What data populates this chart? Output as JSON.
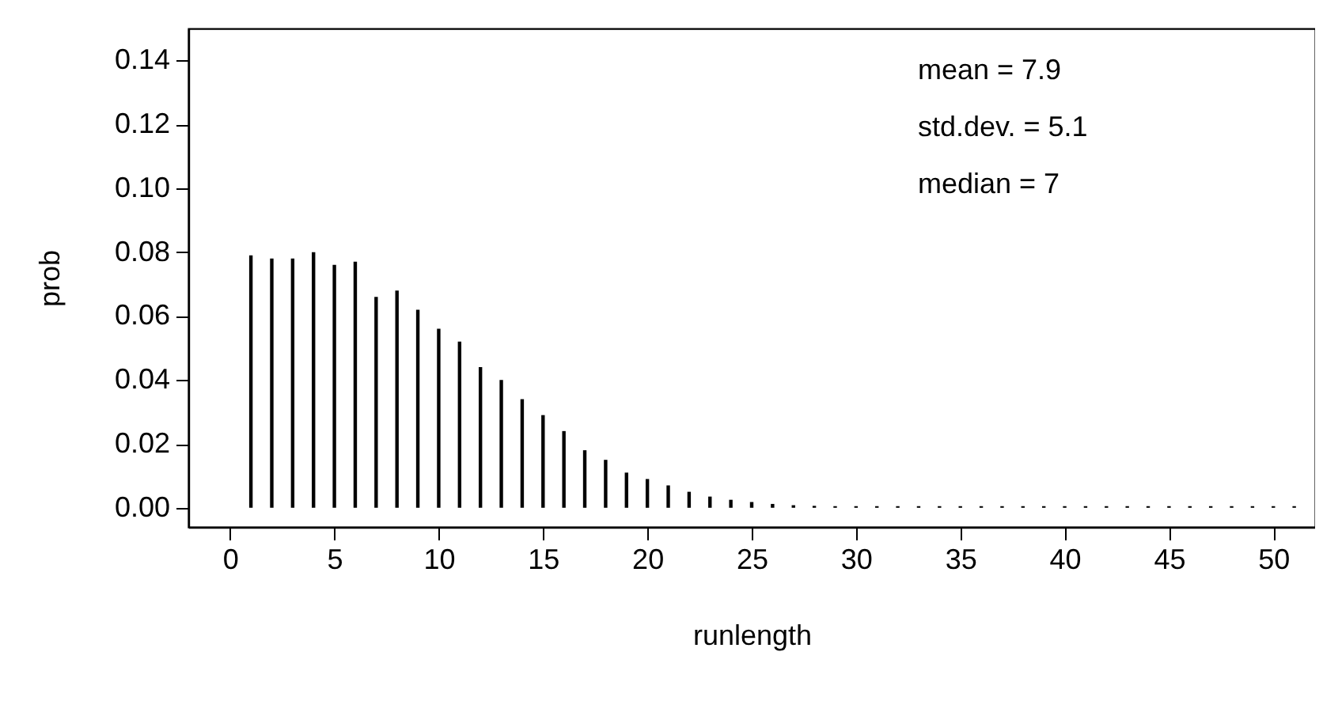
{
  "chart_data": {
    "type": "bar",
    "xlabel": "runlength",
    "ylabel": "prob",
    "x": [
      1,
      2,
      3,
      4,
      5,
      6,
      7,
      8,
      9,
      10,
      11,
      12,
      13,
      14,
      15,
      16,
      17,
      18,
      19,
      20,
      21,
      22,
      23,
      24,
      25,
      26,
      27,
      28,
      29,
      30,
      31,
      32,
      33,
      34,
      35,
      36,
      37,
      38,
      39,
      40,
      41,
      42,
      43,
      44,
      45,
      46,
      47,
      48,
      49,
      50,
      51
    ],
    "series": [
      {
        "color": "#000000",
        "values": [
          0.079,
          0.078,
          0.078,
          0.08,
          0.076,
          0.077,
          0.066,
          0.068,
          0.062,
          0.056,
          0.052,
          0.044,
          0.04,
          0.034,
          0.029,
          0.024,
          0.018,
          0.015,
          0.011,
          0.009,
          0.007,
          0.005,
          0.0035,
          0.0025,
          0.0018,
          0.0012,
          0.0008,
          0.0006,
          0.0005,
          0.0005,
          0.0005,
          0.0005,
          0.0005,
          0.0005,
          0.0005,
          0.0005,
          0.0005,
          0.0005,
          0.0005,
          0.0005,
          0.0005,
          0.0005,
          0.0005,
          0.0005,
          0.0005,
          0.0005,
          0.0005,
          0.0005,
          0.0005,
          0.0005,
          0.0005
        ]
      }
    ],
    "xlim": [
      -2,
      52
    ],
    "xticks": [
      0,
      5,
      10,
      15,
      20,
      25,
      30,
      35,
      40,
      45,
      50
    ],
    "ylim": [
      -0.006,
      0.15
    ],
    "yticks": [
      {
        "value": 0,
        "label": "0.00"
      },
      {
        "value": 0.02,
        "label": "0.02"
      },
      {
        "value": 0.04,
        "label": "0.04"
      },
      {
        "value": 0.06,
        "label": "0.06"
      },
      {
        "value": 0.08,
        "label": "0.08"
      },
      {
        "value": 0.1,
        "label": "0.10"
      },
      {
        "value": 0.12,
        "label": "0.12"
      },
      {
        "value": 0.14,
        "label": "0.14"
      }
    ],
    "annotations": [
      "mean    = 7.9",
      "std.dev. = 5.1",
      "median  = 7"
    ],
    "grid": false
  }
}
